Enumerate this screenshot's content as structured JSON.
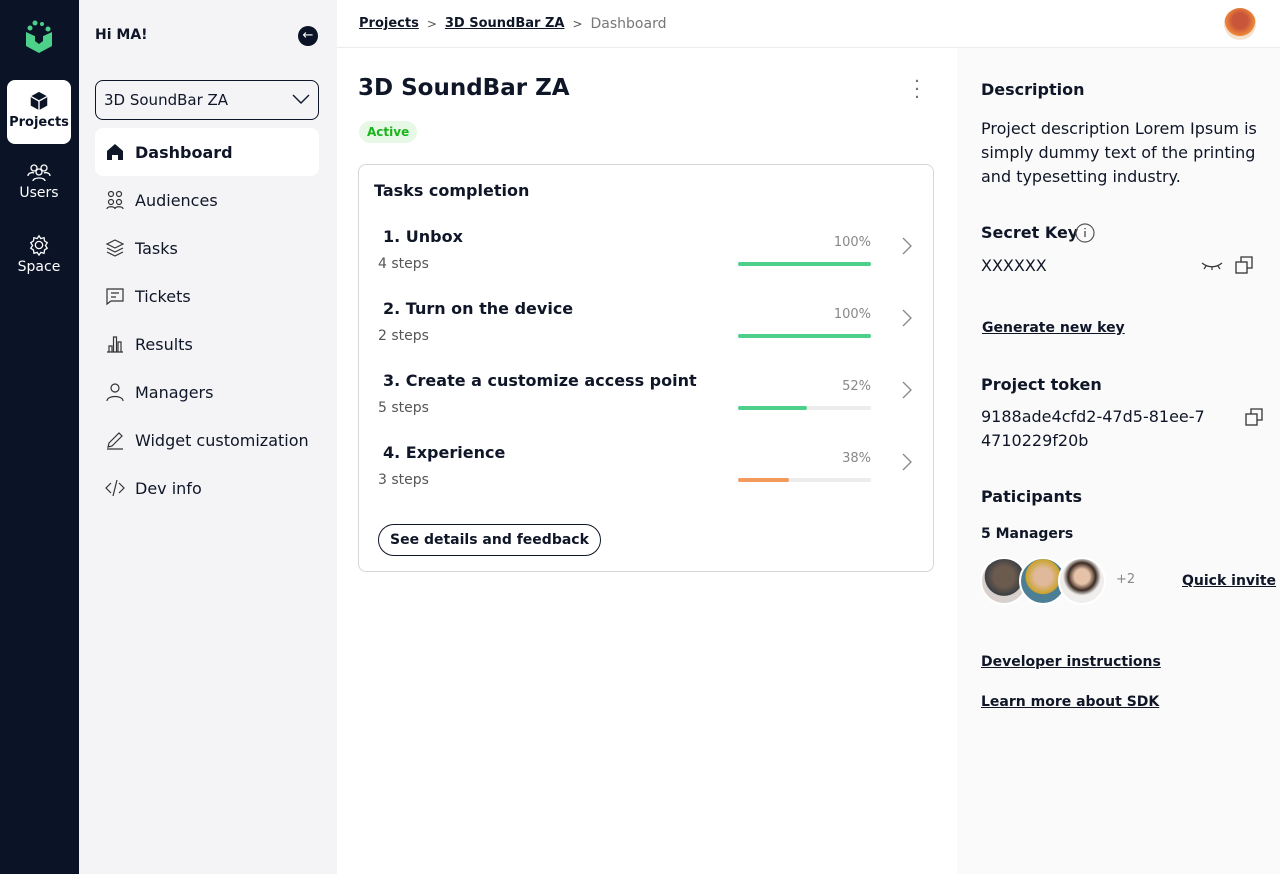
{
  "rail": {
    "items": [
      {
        "label": "Projects",
        "icon": "cube-icon"
      },
      {
        "label": "Users",
        "icon": "users-icon"
      },
      {
        "label": "Space",
        "icon": "gear-icon"
      }
    ]
  },
  "sidebar": {
    "greeting": "Hi MA!",
    "project_select": "3D SoundBar ZA",
    "items": [
      {
        "label": "Dashboard"
      },
      {
        "label": "Audiences"
      },
      {
        "label": "Tasks"
      },
      {
        "label": "Tickets"
      },
      {
        "label": "Results"
      },
      {
        "label": "Managers"
      },
      {
        "label": "Widget customization"
      },
      {
        "label": "Dev info"
      }
    ]
  },
  "breadcrumb": [
    "Projects",
    "3D SoundBar ZA",
    "Dashboard"
  ],
  "main": {
    "title": "3D SoundBar ZA",
    "status": "Active",
    "card_title": "Tasks completion",
    "tasks": [
      {
        "name": "1. Unbox",
        "steps": "4 steps",
        "pct": "100%",
        "value": 100,
        "color": "#4cd08a"
      },
      {
        "name": "2. Turn on the device",
        "steps": "2 steps",
        "pct": "100%",
        "value": 100,
        "color": "#4cd08a"
      },
      {
        "name": "3. Create a customize access point",
        "steps": "5 steps",
        "pct": "52%",
        "value": 52,
        "color": "#4cd08a"
      },
      {
        "name": "4. Experience",
        "steps": "3 steps",
        "pct": "38%",
        "value": 38,
        "color": "#f29b5c"
      }
    ],
    "details_button": "See details and feedback"
  },
  "right": {
    "description_title": "Description",
    "description": "Project description Lorem Ipsum is simply dummy text of the printing and typesetting industry.",
    "secret_title": "Secret Key",
    "secret_value": "XXXXXX",
    "generate": "Generate new key",
    "token_title": "Project token",
    "token_line1": "9188ade4cfd2-47d5-81ee-7",
    "token_line2": "4710229f20b",
    "participants_title": "Paticipants",
    "managers": "5 Managers",
    "more": "+2",
    "quick_invite": "Quick invite",
    "dev_instructions": "Developer instructions",
    "learn_sdk": "Learn more about SDK"
  }
}
